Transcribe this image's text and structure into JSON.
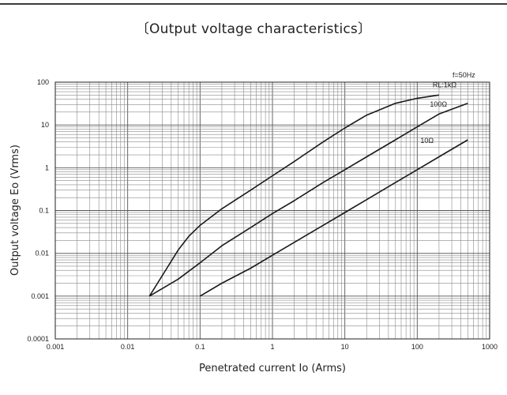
{
  "page": {
    "title": "〔Output voltage characteristics〕"
  },
  "chart_data": {
    "type": "line",
    "title": "〔Output voltage characteristics〕",
    "xlabel": "Penetrated current Io (Arms)",
    "ylabel": "Output voltage Eo (Vrms)",
    "xscale": "log",
    "yscale": "log",
    "xlim": [
      0.001,
      1000
    ],
    "ylim": [
      0.0001,
      100
    ],
    "grid": true,
    "x_tick_labels": [
      "0.001",
      "0.01",
      "0.1",
      "1",
      "10",
      "100",
      "1000"
    ],
    "y_tick_labels": [
      "100",
      "10",
      "1",
      "0.1",
      "0.01",
      "0.001",
      "0.0001"
    ],
    "annotations": [
      {
        "text": "f=50Hz"
      }
    ],
    "series": [
      {
        "name": "RL:1kΩ",
        "x": [
          0.02,
          0.03,
          0.05,
          0.07,
          0.1,
          0.2,
          0.5,
          1,
          2,
          5,
          10,
          20,
          50,
          100,
          200
        ],
        "y": [
          0.001,
          0.003,
          0.012,
          0.025,
          0.045,
          0.11,
          0.3,
          0.65,
          1.4,
          4,
          8.5,
          17,
          32,
          42,
          50
        ]
      },
      {
        "name": "100Ω",
        "x": [
          0.02,
          0.05,
          0.1,
          0.2,
          0.5,
          1,
          2,
          5,
          10,
          20,
          50,
          100,
          200,
          500
        ],
        "y": [
          0.001,
          0.0025,
          0.006,
          0.015,
          0.04,
          0.085,
          0.17,
          0.45,
          0.9,
          1.8,
          4.5,
          9,
          18,
          32
        ]
      },
      {
        "name": "10Ω",
        "x": [
          0.1,
          0.2,
          0.5,
          1,
          2,
          5,
          10,
          20,
          50,
          100,
          200,
          500
        ],
        "y": [
          0.001,
          0.002,
          0.0045,
          0.009,
          0.018,
          0.045,
          0.09,
          0.18,
          0.45,
          0.9,
          1.8,
          4.5
        ]
      }
    ]
  }
}
